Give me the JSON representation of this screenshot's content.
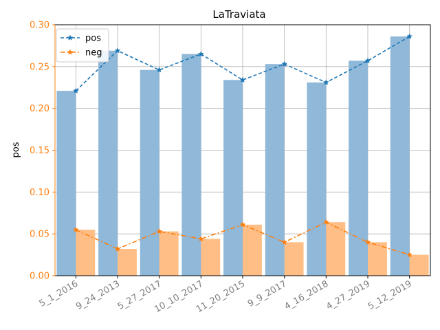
{
  "chart_data": {
    "type": "bar",
    "title": "LaTraviata",
    "xlabel": "",
    "ylabel": "pos",
    "ylim": [
      0,
      0.3
    ],
    "yticks": [
      "0.00",
      "0.05",
      "0.10",
      "0.15",
      "0.20",
      "0.25",
      "0.30"
    ],
    "grid": true,
    "legend_position": "top-left",
    "categories": [
      "5_1_2016",
      "9_24_2013",
      "5_27_2017",
      "10_10_2017",
      "11_20_2015",
      "9_9_2017",
      "4_16_2018",
      "4_27_2019",
      "5_12_2019"
    ],
    "series": [
      {
        "name": "pos",
        "values": [
          0.221,
          0.269,
          0.246,
          0.265,
          0.234,
          0.253,
          0.231,
          0.257,
          0.286
        ],
        "bar_color": "#8fb8d9",
        "line_color": "#1f77b4",
        "line_style": "dashed",
        "marker": "star"
      },
      {
        "name": "neg",
        "values": [
          0.055,
          0.032,
          0.053,
          0.044,
          0.061,
          0.04,
          0.064,
          0.04,
          0.025
        ],
        "bar_color": "#ffbb80",
        "line_color": "#ff7f0e",
        "line_style": "dashdot",
        "marker": "star"
      }
    ],
    "axis_color": "#ff7f0e",
    "tick_label_color": "#808080"
  }
}
